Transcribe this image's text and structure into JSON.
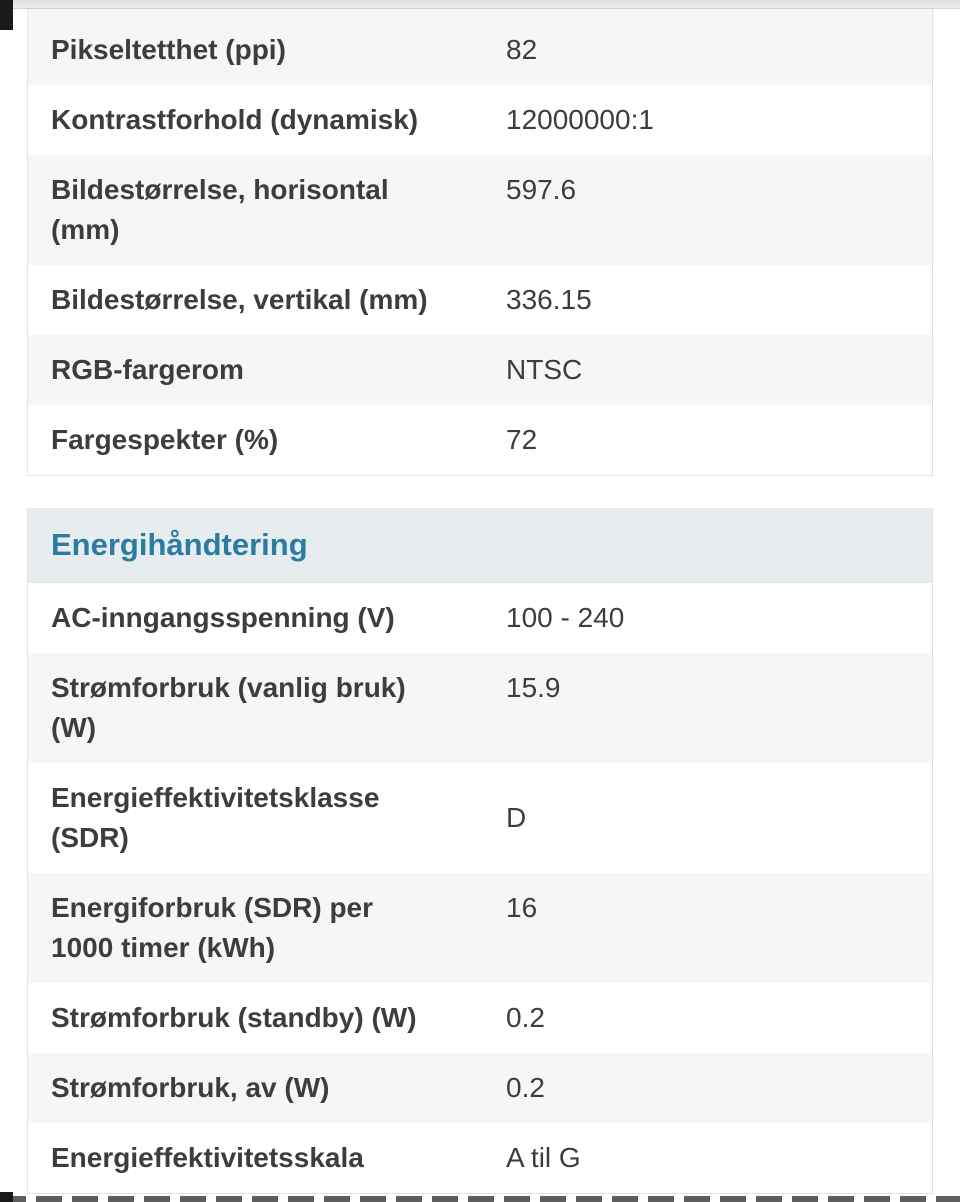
{
  "colors": {
    "accent": "#2b7ba3",
    "section_band_bg": "#e7ecef",
    "row_alt_bg": "#f6f6f6",
    "text": "#3d3d3d"
  },
  "sections": [
    {
      "rows": [
        {
          "label": "Pikseltetthet (ppi)",
          "value": "82"
        },
        {
          "label": "Kontrastforhold (dynamisk)",
          "value": "12000000:1"
        },
        {
          "label": "Bildestørrelse, horisontal\n(mm)",
          "value": "597.6"
        },
        {
          "label": "Bildestørrelse, vertikal (mm)",
          "value": "336.15"
        },
        {
          "label": "RGB-fargerom",
          "value": "NTSC"
        },
        {
          "label": "Fargespekter (%)",
          "value": "72"
        }
      ]
    },
    {
      "title": "Energihåndtering",
      "rows": [
        {
          "label": "AC-inngangsspenning (V)",
          "value": "100 - 240"
        },
        {
          "label": "Strømforbruk (vanlig bruk)\n(W)",
          "value": "15.9"
        },
        {
          "label": "Energieffektivitetsklasse\n(SDR)",
          "value": "D"
        },
        {
          "label": "Energiforbruk (SDR) per\n1000 timer (kWh)",
          "value": "16"
        },
        {
          "label": "Strømforbruk (standby) (W)",
          "value": "0.2"
        },
        {
          "label": "Strømforbruk, av (W)",
          "value": "0.2"
        },
        {
          "label": "Energieffektivitetsskala",
          "value": "A til G"
        }
      ]
    }
  ]
}
